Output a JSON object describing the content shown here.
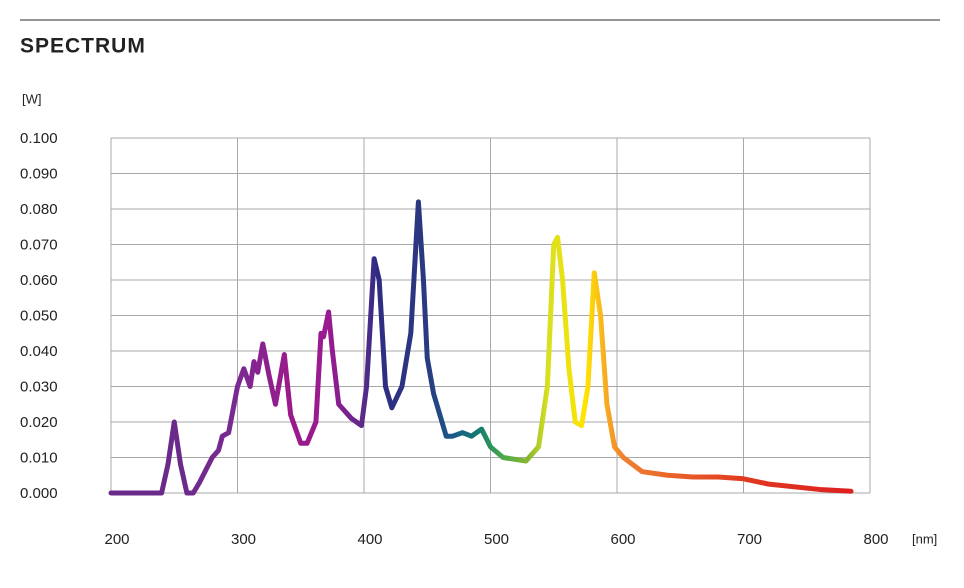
{
  "chart_data": {
    "type": "line",
    "title": "SPECTRUM",
    "y_label": "[W]",
    "x_label": "[nm]",
    "xlim": [
      200,
      800
    ],
    "xticks": [
      200,
      300,
      400,
      500,
      600,
      700,
      800
    ],
    "ylim": [
      0,
      0.1
    ],
    "yticks": [
      {
        "value": 0,
        "label": "0.000"
      },
      {
        "value": 0.01,
        "label": "0.010"
      },
      {
        "value": 0.02,
        "label": "0.020"
      },
      {
        "value": 0.03,
        "label": "0.030"
      },
      {
        "value": 0.04,
        "label": "0.040"
      },
      {
        "value": 0.05,
        "label": "0.050"
      },
      {
        "value": 0.06,
        "label": "0.060"
      },
      {
        "value": 0.07,
        "label": "0.070"
      },
      {
        "value": 0.08,
        "label": "0.080"
      },
      {
        "value": 0.09,
        "label": "0.090"
      },
      {
        "value": 0.1,
        "label": "0.100"
      }
    ],
    "grid": true,
    "x": [
      200,
      240,
      245,
      250,
      255,
      260,
      265,
      270,
      280,
      285,
      288,
      293,
      300,
      305,
      310,
      313,
      316,
      320,
      325,
      330,
      337,
      342,
      350,
      355,
      362,
      366,
      368,
      372,
      375,
      380,
      390,
      398,
      402,
      408,
      412,
      417,
      422,
      430,
      437,
      443,
      447,
      450,
      455,
      465,
      470,
      478,
      485,
      493,
      500,
      510,
      528,
      538,
      545,
      550,
      553,
      557,
      562,
      567,
      572,
      577,
      582,
      587,
      592,
      598,
      605,
      620,
      640,
      660,
      680,
      700,
      720,
      760,
      785
    ],
    "values": [
      0,
      0,
      0.008,
      0.02,
      0.008,
      0,
      0,
      0.003,
      0.01,
      0.012,
      0.016,
      0.017,
      0.03,
      0.035,
      0.03,
      0.037,
      0.034,
      0.042,
      0.033,
      0.025,
      0.039,
      0.022,
      0.014,
      0.014,
      0.02,
      0.045,
      0.044,
      0.051,
      0.04,
      0.025,
      0.021,
      0.019,
      0.03,
      0.066,
      0.06,
      0.03,
      0.024,
      0.03,
      0.045,
      0.082,
      0.06,
      0.038,
      0.028,
      0.016,
      0.016,
      0.017,
      0.016,
      0.018,
      0.013,
      0.01,
      0.009,
      0.013,
      0.03,
      0.07,
      0.072,
      0.06,
      0.035,
      0.02,
      0.019,
      0.03,
      0.062,
      0.05,
      0.025,
      0.013,
      0.01,
      0.006,
      0.005,
      0.0045,
      0.0045,
      0.004,
      0.0025,
      0.001,
      0.0005
    ],
    "color_stops": [
      {
        "x": 250,
        "color": "#6a2a8a"
      },
      {
        "x": 300,
        "color": "#7a2a92"
      },
      {
        "x": 340,
        "color": "#9a1a8c"
      },
      {
        "x": 372,
        "color": "#9a1a90"
      },
      {
        "x": 400,
        "color": "#5a2a8a"
      },
      {
        "x": 410,
        "color": "#2e2c82"
      },
      {
        "x": 450,
        "color": "#2a3a80"
      },
      {
        "x": 470,
        "color": "#1a5a8a"
      },
      {
        "x": 490,
        "color": "#127a70"
      },
      {
        "x": 510,
        "color": "#4aaa4a"
      },
      {
        "x": 530,
        "color": "#8ab830"
      },
      {
        "x": 545,
        "color": "#d8e020"
      },
      {
        "x": 575,
        "color": "#ffe400"
      },
      {
        "x": 590,
        "color": "#f8b020"
      },
      {
        "x": 605,
        "color": "#f08030"
      },
      {
        "x": 700,
        "color": "#e03a20"
      },
      {
        "x": 785,
        "color": "#dd2020"
      }
    ]
  }
}
